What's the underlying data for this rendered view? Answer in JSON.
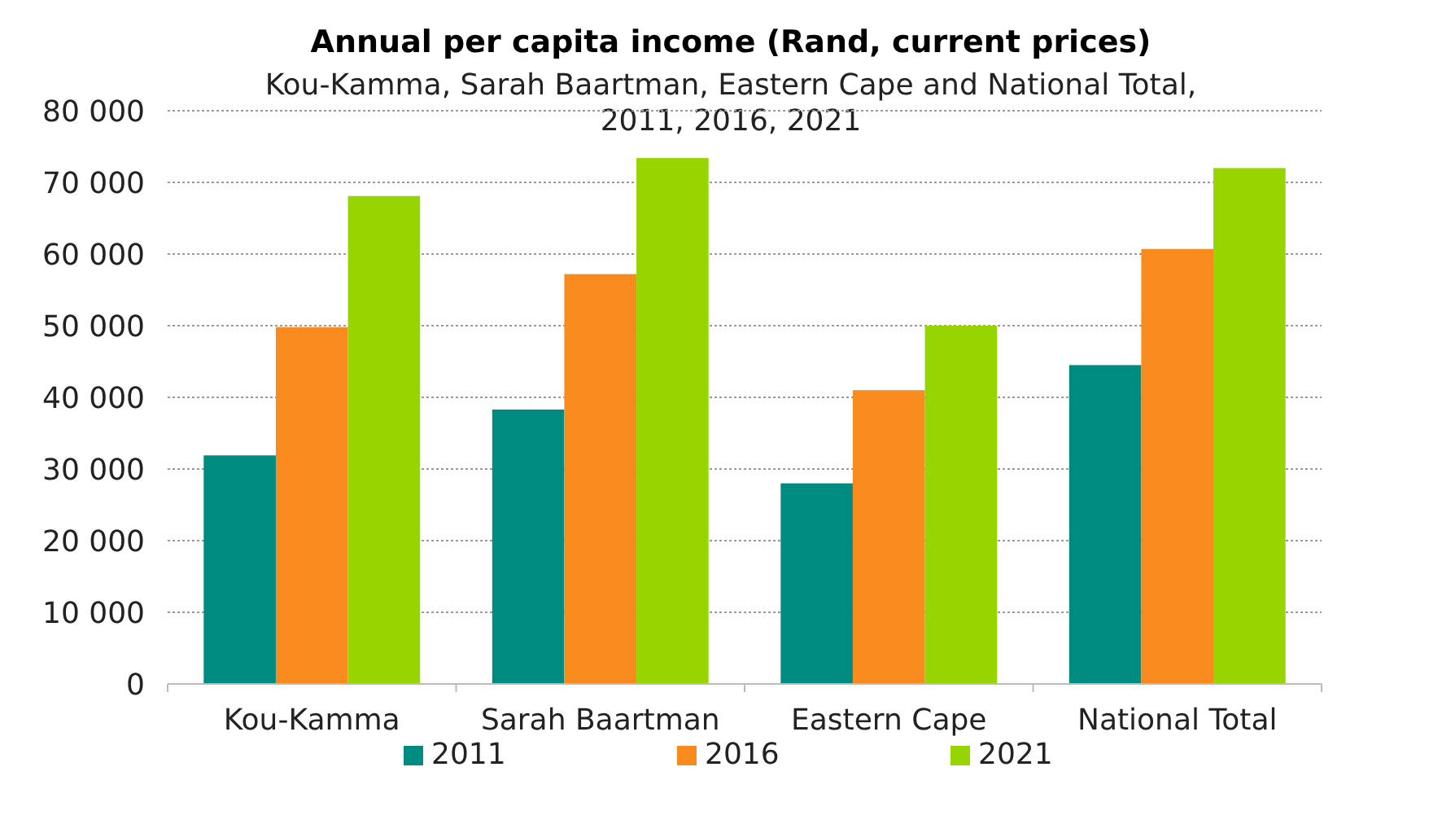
{
  "chart_data": {
    "type": "bar",
    "title": "Annual per capita income (Rand, current prices)",
    "subtitle": "Kou-Kamma, Sarah Baartman, Eastern Cape and National Total, 2011, 2016, 2021",
    "categories": [
      "Kou-Kamma",
      "Sarah Baartman",
      "Eastern Cape",
      "National Total"
    ],
    "series": [
      {
        "name": "2011",
        "color": "#008b80",
        "values": [
          31900,
          38300,
          28000,
          44500
        ]
      },
      {
        "name": "2016",
        "color": "#f98a1d",
        "values": [
          49800,
          57200,
          41000,
          60700
        ]
      },
      {
        "name": "2021",
        "color": "#96d500",
        "values": [
          68100,
          73400,
          50000,
          72000
        ]
      }
    ],
    "ylim": [
      0,
      80000
    ],
    "yticks": [
      {
        "value": 0,
        "label": "0"
      },
      {
        "value": 10000,
        "label": "10 000"
      },
      {
        "value": 20000,
        "label": "20 000"
      },
      {
        "value": 30000,
        "label": "30 000"
      },
      {
        "value": 40000,
        "label": "40 000"
      },
      {
        "value": 50000,
        "label": "50 000"
      },
      {
        "value": 60000,
        "label": "60 000"
      },
      {
        "value": 70000,
        "label": "70 000"
      },
      {
        "value": 80000,
        "label": "80 000"
      }
    ],
    "grid": "y",
    "legend": "bottom"
  }
}
